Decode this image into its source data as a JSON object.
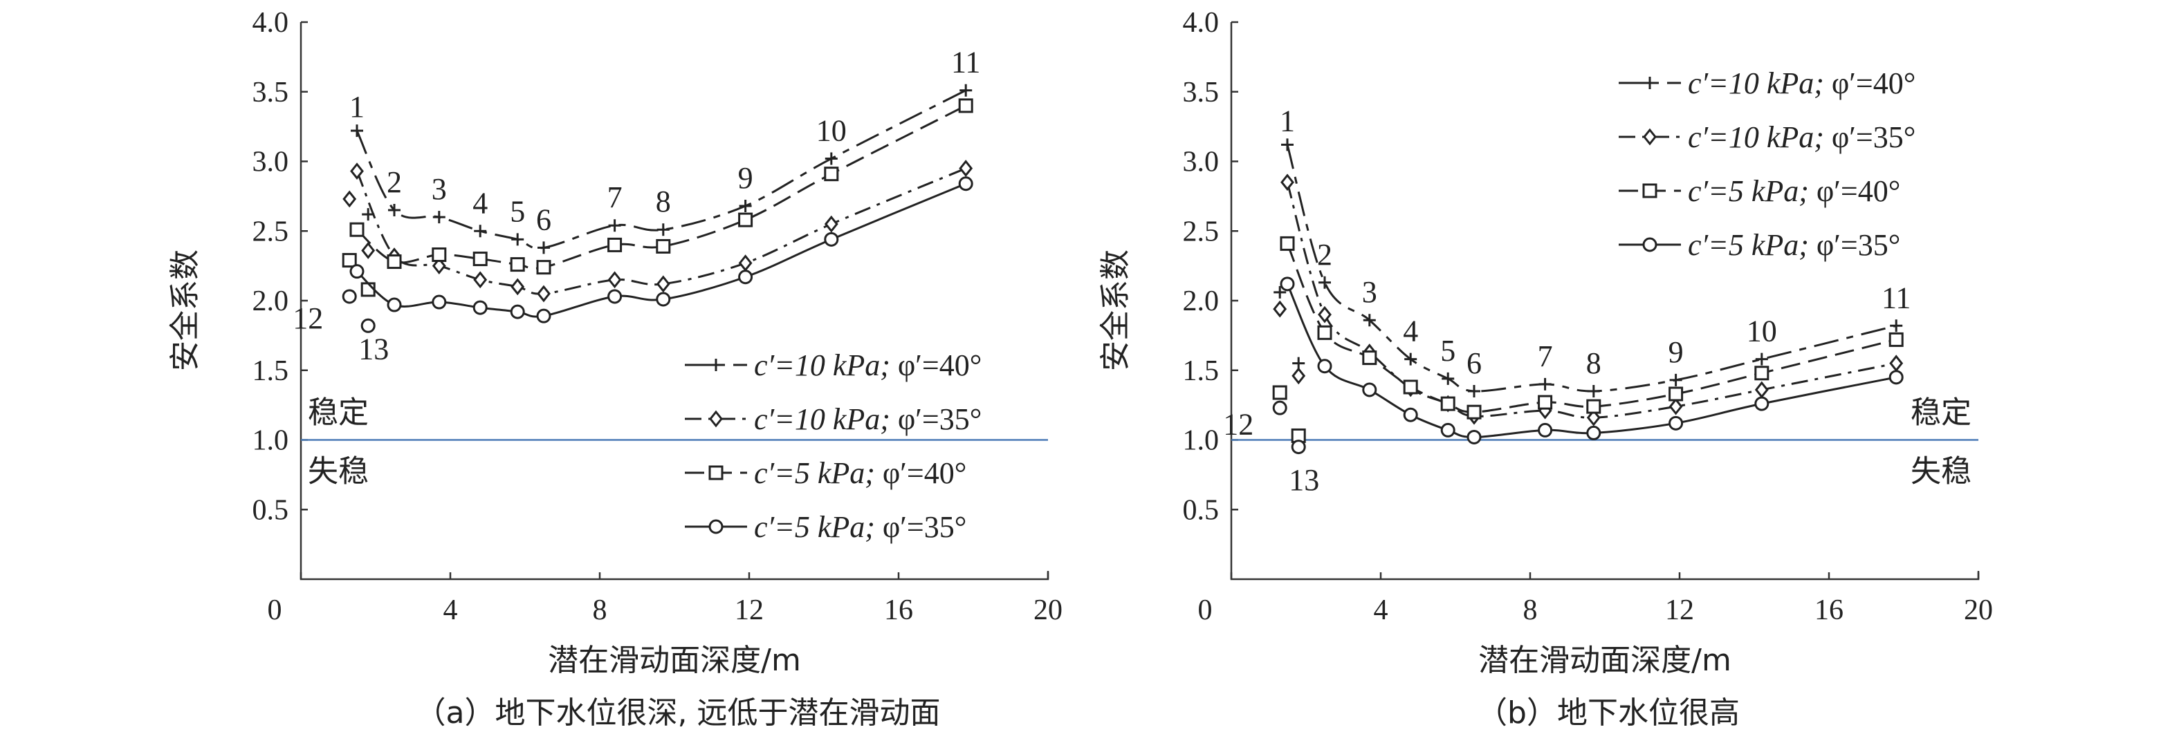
{
  "chart_data": [
    {
      "type": "line",
      "caption": "（a）地下水位很深, 远低于潜在滑动面",
      "xlabel": "潜在滑动面深度/m",
      "ylabel": "安全系数",
      "xlim": [
        0,
        20
      ],
      "ylim": [
        0,
        4.0
      ],
      "xticks": [
        "0",
        "4",
        "8",
        "12",
        "16",
        "20"
      ],
      "yticks": [
        "0.5",
        "1.0",
        "1.5",
        "2.0",
        "2.5",
        "3.0",
        "3.5",
        "4.0"
      ],
      "x_tick_values": [
        0,
        4,
        8,
        12,
        16,
        20
      ],
      "y_tick_values": [
        0.5,
        1.0,
        1.5,
        2.0,
        2.5,
        3.0,
        3.5,
        4.0
      ],
      "threshold": 1.0,
      "threshold_color": "#4a7ab5",
      "stable_label": "稳定",
      "unstable_label": "失稳",
      "legend_position": "lower-right",
      "series": [
        {
          "legend": {
            "c": "c′=10 kPa; ",
            "phi": "φ′=40°"
          },
          "marker": "plus",
          "dash": "long-short",
          "x": [
            1.5,
            1.8,
            2.5,
            3.7,
            4.8,
            5.8,
            6.5,
            8.4,
            9.7,
            11.9,
            14.2,
            17.8
          ],
          "y": [
            3.22,
            2.62,
            2.65,
            2.6,
            2.5,
            2.44,
            2.38,
            2.54,
            2.51,
            2.68,
            3.02,
            3.51
          ]
        },
        {
          "legend": {
            "c": "c′=10 kPa; ",
            "phi": "φ′=35°"
          },
          "marker": "diamond",
          "dash": "dash-dot",
          "x": [
            1.3,
            1.5,
            1.8,
            2.5,
            3.7,
            4.8,
            5.8,
            6.5,
            8.4,
            9.7,
            11.9,
            14.2,
            17.8
          ],
          "y": [
            2.73,
            2.93,
            2.36,
            2.32,
            2.25,
            2.15,
            2.1,
            2.05,
            2.15,
            2.12,
            2.27,
            2.55,
            2.95
          ]
        },
        {
          "legend": {
            "c": "c′=5 kPa; ",
            "phi": "φ′=40°"
          },
          "marker": "square",
          "dash": "dash",
          "x": [
            1.3,
            1.5,
            1.8,
            2.5,
            3.7,
            4.8,
            5.8,
            6.5,
            8.4,
            9.7,
            11.9,
            14.2,
            17.8
          ],
          "y": [
            2.29,
            2.51,
            2.08,
            2.28,
            2.33,
            2.3,
            2.26,
            2.24,
            2.4,
            2.39,
            2.58,
            2.91,
            3.4
          ]
        },
        {
          "legend": {
            "c": "c′=5 kPa; ",
            "phi": "φ′=35°"
          },
          "marker": "circle",
          "dash": "solid",
          "x": [
            1.3,
            1.5,
            1.8,
            2.5,
            3.7,
            4.8,
            5.8,
            6.5,
            8.4,
            9.7,
            11.9,
            14.2,
            17.8
          ],
          "y": [
            2.03,
            2.21,
            1.82,
            1.97,
            1.99,
            1.95,
            1.92,
            1.89,
            2.03,
            2.01,
            2.17,
            2.44,
            2.84
          ]
        }
      ],
      "point_labels": [
        {
          "text": "1",
          "x": 1.5,
          "y": 3.22
        },
        {
          "text": "2",
          "x": 2.5,
          "y": 2.65
        },
        {
          "text": "3",
          "x": 3.7,
          "y": 2.6
        },
        {
          "text": "4",
          "x": 4.8,
          "y": 2.5
        },
        {
          "text": "5",
          "x": 5.8,
          "y": 2.44
        },
        {
          "text": "6",
          "x": 6.5,
          "y": 2.38
        },
        {
          "text": "7",
          "x": 8.4,
          "y": 2.54
        },
        {
          "text": "8",
          "x": 9.7,
          "y": 2.51
        },
        {
          "text": "9",
          "x": 11.9,
          "y": 2.68
        },
        {
          "text": "10",
          "x": 14.2,
          "y": 3.02
        },
        {
          "text": "11",
          "x": 17.8,
          "y": 3.51
        },
        {
          "text": "12",
          "x": 1.3,
          "y": 1.88
        },
        {
          "text": "13",
          "x": 1.8,
          "y": 1.66
        }
      ]
    },
    {
      "type": "line",
      "caption": "（b）地下水位很高",
      "xlabel": "潜在滑动面深度/m",
      "ylabel": "安全系数",
      "xlim": [
        0,
        20
      ],
      "ylim": [
        0,
        4.0
      ],
      "xticks": [
        "0",
        "4",
        "8",
        "12",
        "16",
        "20"
      ],
      "yticks": [
        "0.5",
        "1.0",
        "1.5",
        "2.0",
        "2.5",
        "3.0",
        "3.5",
        "4.0"
      ],
      "x_tick_values": [
        0,
        4,
        8,
        12,
        16,
        20
      ],
      "y_tick_values": [
        0.5,
        1.0,
        1.5,
        2.0,
        2.5,
        3.0,
        3.5,
        4.0
      ],
      "threshold": 1.0,
      "threshold_color": "#4a7ab5",
      "stable_label": "稳定",
      "unstable_label": "失稳",
      "legend_position": "upper-right",
      "series": [
        {
          "legend": {
            "c": "c′=10 kPa; ",
            "phi": "φ′=40°"
          },
          "marker": "plus",
          "dash": "long-short",
          "x": [
            1.3,
            1.5,
            1.8,
            2.5,
            3.7,
            4.8,
            5.8,
            6.5,
            8.4,
            9.7,
            11.9,
            14.2,
            17.8
          ],
          "y": [
            2.06,
            3.12,
            1.55,
            2.13,
            1.86,
            1.58,
            1.44,
            1.35,
            1.4,
            1.35,
            1.43,
            1.58,
            1.82
          ]
        },
        {
          "legend": {
            "c": "c′=10 kPa; ",
            "phi": "φ′=35°"
          },
          "marker": "diamond",
          "dash": "dash-dot",
          "x": [
            1.3,
            1.5,
            1.8,
            2.5,
            3.7,
            4.8,
            5.8,
            6.5,
            8.4,
            9.7,
            11.9,
            14.2,
            17.8
          ],
          "y": [
            1.94,
            2.85,
            1.46,
            1.9,
            1.63,
            1.37,
            1.26,
            1.17,
            1.21,
            1.16,
            1.24,
            1.36,
            1.55
          ]
        },
        {
          "legend": {
            "c": "c′=5 kPa; ",
            "phi": "φ′=40°"
          },
          "marker": "square",
          "dash": "dash",
          "x": [
            1.3,
            1.5,
            1.8,
            2.5,
            3.7,
            4.8,
            5.8,
            6.5,
            8.4,
            9.7,
            11.9,
            14.2,
            17.8
          ],
          "y": [
            1.34,
            2.41,
            1.03,
            1.77,
            1.59,
            1.38,
            1.26,
            1.2,
            1.27,
            1.24,
            1.33,
            1.48,
            1.72
          ]
        },
        {
          "legend": {
            "c": "c′=5 kPa; ",
            "phi": "φ′=35°"
          },
          "marker": "circle",
          "dash": "solid",
          "x": [
            1.3,
            1.5,
            1.8,
            2.5,
            3.7,
            4.8,
            5.8,
            6.5,
            8.4,
            9.7,
            11.9,
            14.2,
            17.8
          ],
          "y": [
            1.23,
            2.12,
            0.95,
            1.53,
            1.36,
            1.18,
            1.07,
            1.02,
            1.07,
            1.05,
            1.12,
            1.26,
            1.45
          ]
        }
      ],
      "point_labels": [
        {
          "text": "1",
          "x": 1.5,
          "y": 3.12
        },
        {
          "text": "2",
          "x": 2.5,
          "y": 2.13
        },
        {
          "text": "3",
          "x": 3.7,
          "y": 1.86
        },
        {
          "text": "4",
          "x": 4.8,
          "y": 1.58
        },
        {
          "text": "5",
          "x": 5.8,
          "y": 1.44
        },
        {
          "text": "6",
          "x": 6.5,
          "y": 1.35
        },
        {
          "text": "7",
          "x": 8.4,
          "y": 1.4
        },
        {
          "text": "8",
          "x": 9.7,
          "y": 1.35
        },
        {
          "text": "9",
          "x": 11.9,
          "y": 1.43
        },
        {
          "text": "10",
          "x": 14.2,
          "y": 1.58
        },
        {
          "text": "11",
          "x": 17.8,
          "y": 1.82
        },
        {
          "text": "12",
          "x": 1.3,
          "y": 1.12
        },
        {
          "text": "13",
          "x": 1.8,
          "y": 0.72
        }
      ]
    }
  ]
}
